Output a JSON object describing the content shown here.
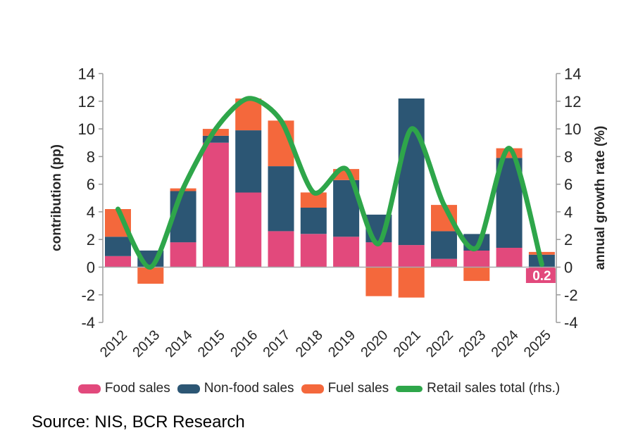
{
  "chart_data": {
    "type": "stacked-bar-line",
    "x": [
      "2012",
      "2013",
      "2014",
      "2015",
      "2016",
      "2017",
      "2018",
      "2019",
      "2020",
      "2021",
      "2022",
      "2023",
      "2024",
      "2025"
    ],
    "series": [
      {
        "name": "Food sales",
        "type": "bar",
        "color": "#e2497c",
        "values": [
          0.8,
          0.0,
          1.8,
          9.0,
          5.4,
          2.6,
          2.4,
          2.2,
          1.8,
          1.6,
          0.6,
          1.2,
          1.4,
          -0.9
        ]
      },
      {
        "name": "Non-food sales",
        "type": "bar",
        "color": "#2c5674",
        "values": [
          1.4,
          1.2,
          3.7,
          0.5,
          4.5,
          4.7,
          1.9,
          4.1,
          2.0,
          10.6,
          2.0,
          1.2,
          6.5,
          0.9
        ]
      },
      {
        "name": "Fuel sales",
        "type": "bar",
        "color": "#f4683c",
        "values": [
          2.0,
          -1.2,
          0.2,
          0.5,
          2.3,
          3.3,
          1.1,
          0.8,
          -2.1,
          -2.2,
          1.9,
          -1.0,
          0.7,
          0.2
        ]
      },
      {
        "name": "Retail sales total (rhs.)",
        "type": "line",
        "axis": "right",
        "color": "#2ea64a",
        "values": [
          4.2,
          0.0,
          5.7,
          10.0,
          12.2,
          10.6,
          5.4,
          7.1,
          1.7,
          10.0,
          4.5,
          1.4,
          8.6,
          0.2
        ]
      }
    ],
    "left_axis": {
      "label": "contribution (pp)",
      "min": -4,
      "max": 14,
      "step": 2
    },
    "right_axis": {
      "label": "annual growth rate (%)",
      "min": -4,
      "max": 14,
      "step": 2
    },
    "annotations": [
      {
        "x": "2025",
        "text": "0.2",
        "bg": "#e2497c",
        "fg": "#ffffff",
        "position": "below-zero-line"
      }
    ],
    "grid": "zero-line-only",
    "legend_position": "bottom",
    "axis_color": "#9b9b9b",
    "zero_line_color": "#a9a9ad"
  },
  "source_note": "Source: NIS, BCR Research"
}
